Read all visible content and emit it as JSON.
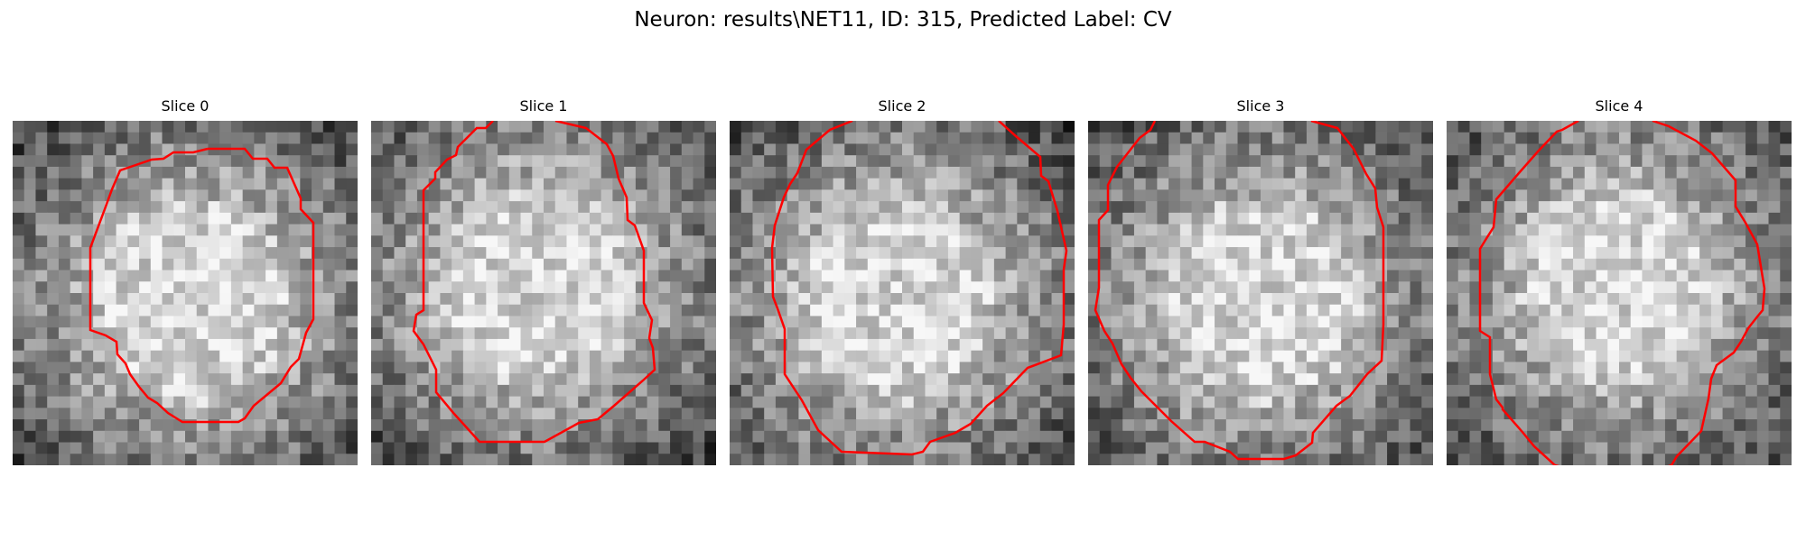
{
  "figure": {
    "title": "Neuron: results\\NET11, ID: 315, Predicted Label: CV",
    "outline_color": "#ff0000"
  },
  "panels": [
    {
      "title": "Slice 0"
    },
    {
      "title": "Slice 1"
    },
    {
      "title": "Slice 2"
    },
    {
      "title": "Slice 3"
    },
    {
      "title": "Slice 4"
    }
  ]
}
